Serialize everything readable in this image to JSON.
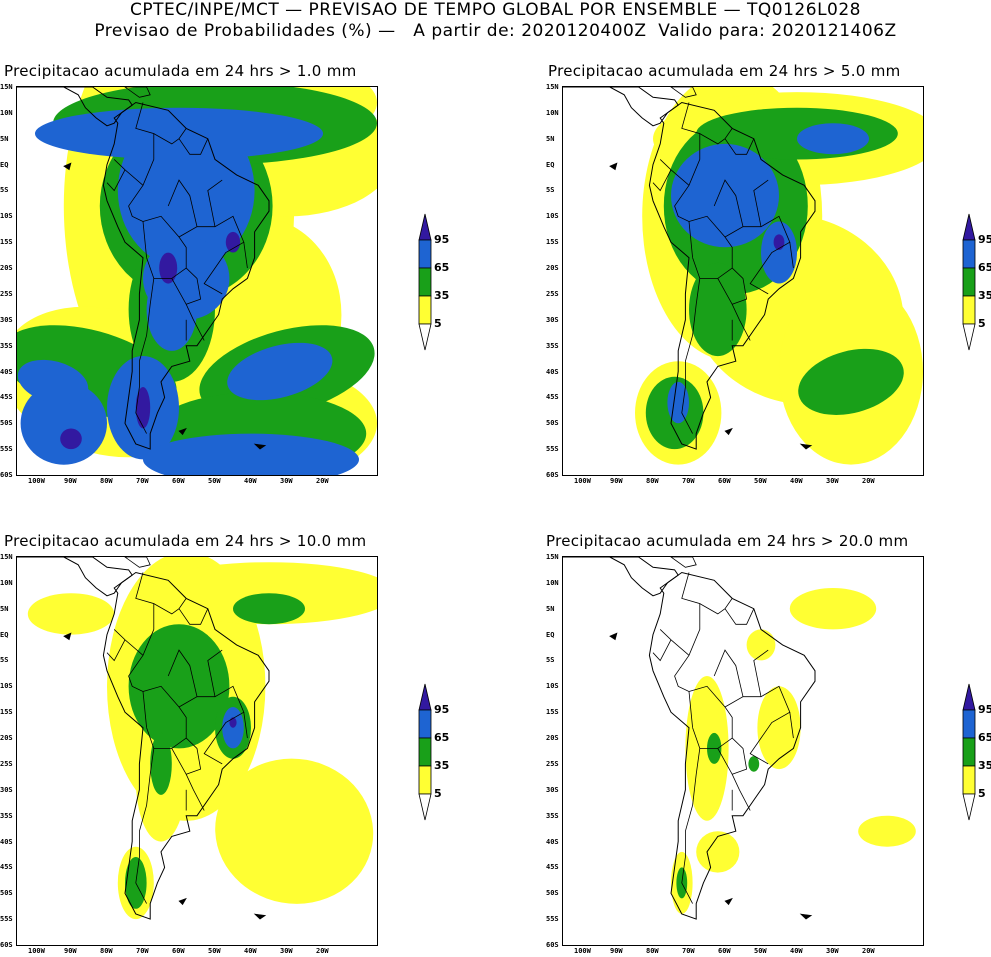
{
  "header": {
    "line1": "CPTEC/INPE/MCT — PREVISAO DE TEMPO GLOBAL POR ENSEMBLE — TQ0126L028",
    "line2": "Previsao de Probabilidades (%) —   A partir de: 2020120400Z  Valido para: 2020121406Z"
  },
  "lat_labels": [
    "15N",
    "10N",
    "5N",
    "EQ",
    "5S",
    "10S",
    "15S",
    "20S",
    "25S",
    "30S",
    "35S",
    "40S",
    "45S",
    "50S",
    "55S",
    "60S"
  ],
  "lon_labels": [
    "100W",
    "90W",
    "80W",
    "70W",
    "60W",
    "50W",
    "40W",
    "30W",
    "20W"
  ],
  "legend": {
    "levels": [
      "95",
      "65",
      "35",
      "5"
    ],
    "colors": {
      "yellow": "#ffff33",
      "green": "#19a019",
      "blue": "#1e64d2",
      "darkblue": "#3219a0",
      "white": "#ffffff"
    }
  },
  "panels": [
    {
      "title": "Precipitacao acumulada em 24 hrs > 1.0 mm"
    },
    {
      "title": "Precipitacao acumulada em 24 hrs > 5.0 mm"
    },
    {
      "title": "Precipitacao acumulada em 24 hrs > 10.0 mm"
    },
    {
      "title": "Precipitacao acumulada em 24 hrs > 20.0 mm"
    }
  ]
}
